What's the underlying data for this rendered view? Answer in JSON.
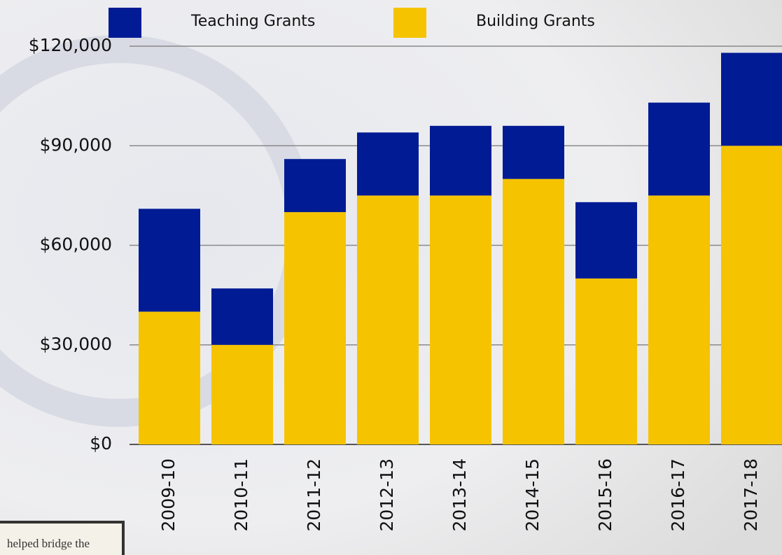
{
  "chart_data": {
    "type": "stacked-bar",
    "categories": [
      "2009-10",
      "2010-11",
      "2011-12",
      "2012-13",
      "2013-14",
      "2014-15",
      "2015-16",
      "2016-17",
      "2017-18"
    ],
    "series": [
      {
        "name": "Teaching Grants",
        "color": "#001b94",
        "values": [
          31000,
          17000,
          16000,
          19000,
          21000,
          16000,
          23000,
          28000,
          28000
        ]
      },
      {
        "name": "Building Grants",
        "color": "#f6c300",
        "values": [
          40000,
          30000,
          70000,
          75000,
          75000,
          80000,
          50000,
          75000,
          90000
        ]
      }
    ],
    "ylim": [
      0,
      120000
    ],
    "yticks": [
      {
        "value": 0,
        "label": "$0"
      },
      {
        "value": 30000,
        "label": "$30,000"
      },
      {
        "value": 60000,
        "label": "$60,000"
      },
      {
        "value": 90000,
        "label": "$90,000"
      },
      {
        "value": 120000,
        "label": "$120,000"
      }
    ],
    "grid": true,
    "legend": "top",
    "annotation": "helped bridge the"
  }
}
